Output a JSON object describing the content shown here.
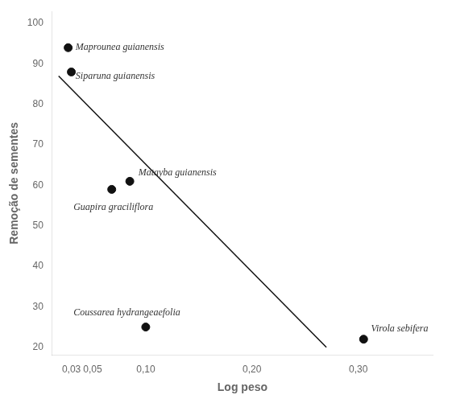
{
  "chart_data": {
    "type": "scatter",
    "x": [
      0.027,
      0.03,
      0.068,
      0.085,
      0.1,
      0.305
    ],
    "values": [
      94,
      88,
      59,
      61,
      25,
      22
    ],
    "color": "#111111",
    "series": [
      {
        "type": "line",
        "x": [
          0.018,
          0.27
        ],
        "values": [
          87.0,
          20.0
        ],
        "color": "#111111"
      }
    ],
    "annotations": [
      {
        "text": "Maprounea guianensis",
        "x": 0.034,
        "y": 94
      },
      {
        "text": "Siparuna guianensis",
        "x": 0.034,
        "y": 87
      },
      {
        "text": "Guapira graciliflora",
        "x": 0.032,
        "y": 54.5
      },
      {
        "text": "Matayba guianensis",
        "x": 0.093,
        "y": 63
      },
      {
        "text": "Coussarea hydrangeaefolia",
        "x": 0.032,
        "y": 28.5
      },
      {
        "text": "Virola sebifera",
        "x": 0.312,
        "y": 24.5
      }
    ],
    "x_label": "Log peso",
    "y_label": "Remoção de sementes",
    "xlim": [
      0.012,
      0.37
    ],
    "ylim": [
      18,
      103
    ],
    "xticks": [
      {
        "value": 0.03,
        "label": "0,03"
      },
      {
        "value": 0.05,
        "label": "0,05"
      },
      {
        "value": 0.1,
        "label": "0,10"
      },
      {
        "value": 0.2,
        "label": "0,20"
      },
      {
        "value": 0.3,
        "label": "0,30"
      }
    ],
    "yticks": [
      20,
      30,
      40,
      50,
      60,
      70,
      80,
      90,
      100
    ],
    "grid": false,
    "legend": false
  }
}
